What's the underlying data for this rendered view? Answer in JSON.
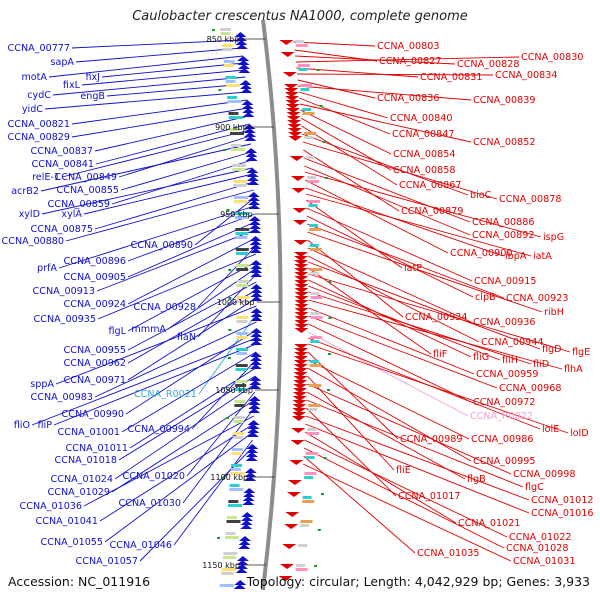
{
  "title": "Caulobacter crescentus NA1000, complete genome",
  "footer": {
    "accession": "Accession: NC_011916",
    "topology": "Topology: circular; Length: 4,042,929 bp; Genes: 3,933"
  },
  "colors": {
    "left_strand": "#1010cc",
    "right_strand": "#e00000",
    "rna_left": "#33aadd",
    "rna_right": "#f0a0d8",
    "backbone": "#8c8c8c"
  },
  "kbp_ticks": [
    "850 kbp",
    "900 kbp",
    "950 kbp",
    "1000 kbp",
    "1050 kbp",
    "1100 kbp",
    "1150 kbp"
  ],
  "left_labels": [
    "CCNA_00777",
    "sapA",
    "motA",
    "fixJ",
    "fixL",
    "cydC",
    "engB",
    "yidC",
    "CCNA_00821",
    "CCNA_00829",
    "CCNA_00837",
    "CCNA_00841",
    "relE-1",
    "CCNA_00849",
    "acrB2",
    "CCNA_00855",
    "CCNA_00859",
    "xylD",
    "xylA",
    "CCNA_00875",
    "CCNA_00880",
    "CCNA_00890",
    "prfA",
    "CCNA_00896",
    "CCNA_00905",
    "CCNA_00913",
    "CCNA_00924",
    "CCNA_00928",
    "CCNA_00935",
    "flgL",
    "mmmA",
    "flaN",
    "CCNA_00955",
    "CCNA_00962",
    "CCNA_00971",
    "sppA",
    "CCNA_R0021",
    "CCNA_00983",
    "CCNA_00990",
    "fliO",
    "fliP",
    "CCNA_01001",
    "CCNA_00994",
    "CCNA_01011",
    "CCNA_01018",
    "CCNA_01024",
    "CCNA_01020",
    "CCNA_01029",
    "CCNA_01030",
    "CCNA_01036",
    "CCNA_01041",
    "CCNA_01055",
    "CCNA_01046",
    "CCNA_01057"
  ],
  "right_labels": [
    "CCNA_00803",
    "CCNA_00827",
    "CCNA_00828",
    "CCNA_00830",
    "CCNA_00831",
    "CCNA_00834",
    "CCNA_00836",
    "CCNA_00839",
    "CCNA_00840",
    "CCNA_00847",
    "CCNA_00852",
    "CCNA_00854",
    "CCNA_00858",
    "CCNA_00867",
    "bioC",
    "CCNA_00878",
    "CCNA_00879",
    "CCNA_00886",
    "CCNA_00892",
    "ispG",
    "CCNA_00900",
    "ibpA",
    "iatA",
    "iatP",
    "CCNA_00915",
    "clpB",
    "CCNA_00923",
    "ribH",
    "CCNA_00934",
    "CCNA_00936",
    "CCNA_00944",
    "flgD",
    "fliF",
    "flgE",
    "fliG",
    "fliH",
    "fliD",
    "flhA",
    "CCNA_00959",
    "CCNA_00968",
    "CCNA_00972",
    "CCNA_R0022",
    "lolE",
    "lolD",
    "CCNA_00989",
    "CCNA_00986",
    "CCNA_00995",
    "fliE",
    "CCNA_00998",
    "flgB",
    "flgC",
    "CCNA_01017",
    "CCNA_01012",
    "CCNA_01016",
    "CCNA_01021",
    "CCNA_01022",
    "CCNA_01028",
    "CCNA_01035",
    "CCNA_01031"
  ]
}
